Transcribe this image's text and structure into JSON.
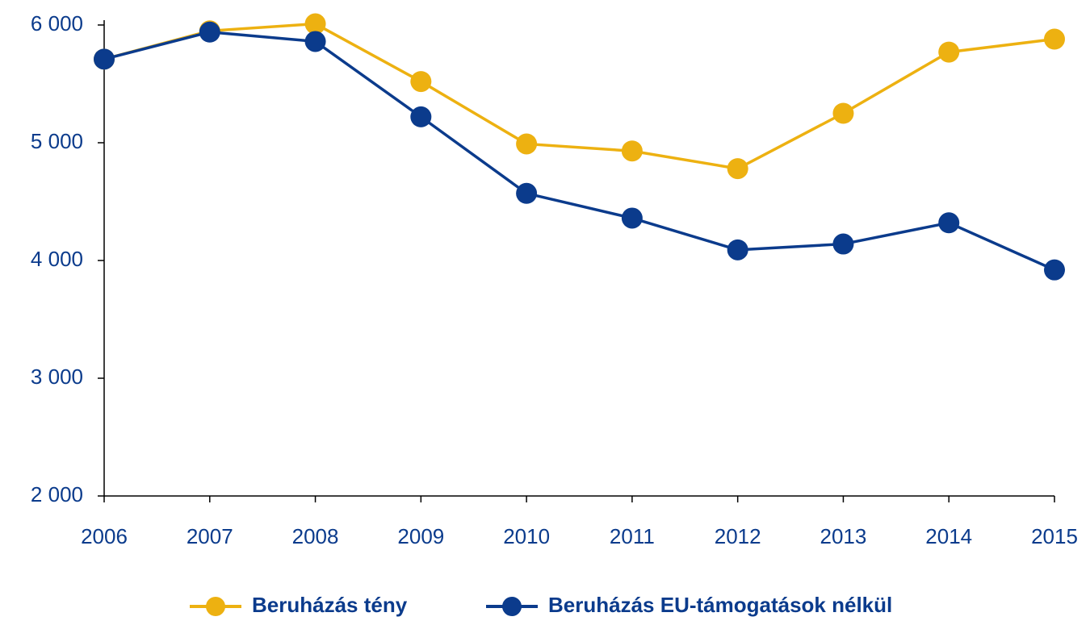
{
  "chart_data": {
    "type": "line",
    "categories": [
      "2006",
      "2007",
      "2008",
      "2009",
      "2010",
      "2011",
      "2012",
      "2013",
      "2014",
      "2015"
    ],
    "series": [
      {
        "name": "Beruházás tény",
        "color": "#edb111",
        "values": [
          5710,
          5950,
          6010,
          5520,
          4990,
          4930,
          4780,
          5250,
          5770,
          5880
        ]
      },
      {
        "name": "Beruházás EU-támogatások nélkül",
        "color": "#0b3b8c",
        "values": [
          5710,
          5940,
          5860,
          5220,
          4570,
          4360,
          4090,
          4140,
          4320,
          3920
        ]
      }
    ],
    "ylim": [
      2000,
      6000
    ],
    "yticks": [
      {
        "value": 2000,
        "label": "2 000"
      },
      {
        "value": 3000,
        "label": "3 000"
      },
      {
        "value": 4000,
        "label": "4 000"
      },
      {
        "value": 5000,
        "label": "5 000"
      },
      {
        "value": 6000,
        "label": "6 000"
      }
    ],
    "grid": false,
    "legend": "bottom"
  }
}
